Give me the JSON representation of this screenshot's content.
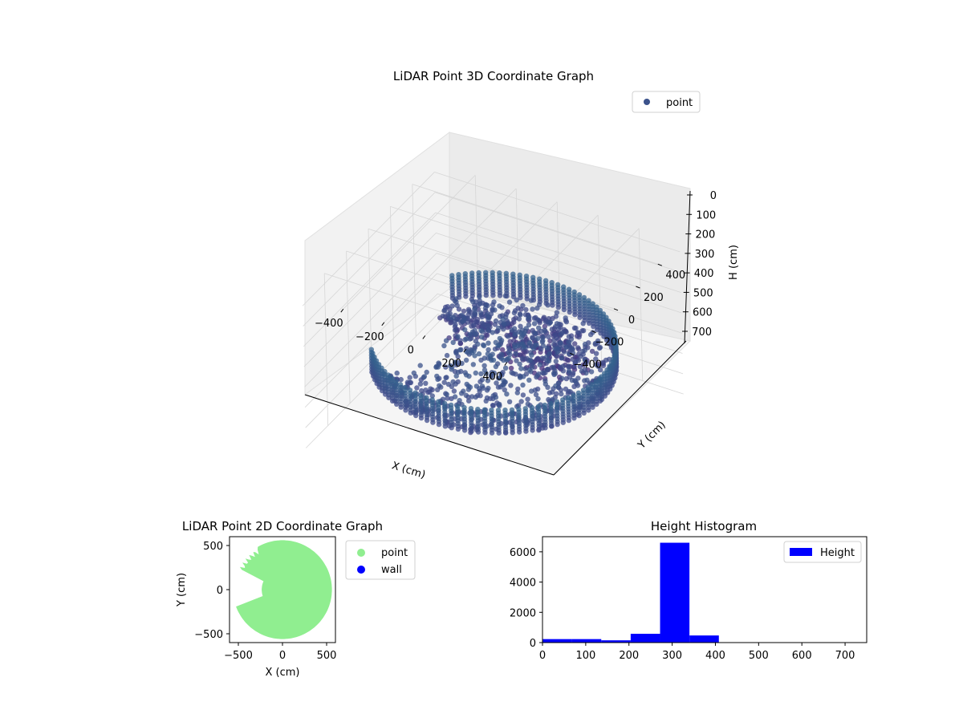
{
  "chart_data": [
    {
      "type": "scatter3d",
      "title": "LiDAR Point 3D Coordinate Graph",
      "xlabel": "X (cm)",
      "ylabel": "Y (cm)",
      "zlabel": "H (cm)",
      "xticks": [
        -400,
        -200,
        0,
        200,
        400
      ],
      "yticks": [
        -400,
        -200,
        0,
        200,
        400
      ],
      "zticks": [
        0,
        100,
        200,
        300,
        400,
        500,
        600,
        700
      ],
      "xlim": [
        -600,
        600
      ],
      "ylim": [
        -600,
        600
      ],
      "zlim": [
        0,
        750
      ],
      "z_axis_inverted": true,
      "colormap": "viridis",
      "legend": {
        "placement": "top-right",
        "entries": [
          {
            "name": "point",
            "color": "#3b528b"
          }
        ]
      },
      "description_of_data": {
        "ring_radius": 530,
        "ring_height_range": [
          280,
          400
        ],
        "missing_arc_deg": [
          140,
          215
        ],
        "spike_height_range": [
          100,
          180
        ]
      }
    },
    {
      "type": "scatter",
      "title": "LiDAR Point 2D Coordinate Graph",
      "xlabel": "X (cm)",
      "ylabel": "Y (cm)",
      "xticks": [
        -500,
        0,
        500
      ],
      "yticks": [
        -500,
        0,
        500
      ],
      "xlim": [
        -600,
        600
      ],
      "ylim": [
        -600,
        600
      ],
      "legend": {
        "placement": "right-outside",
        "entries": [
          {
            "name": "point",
            "color": "#90ee90"
          },
          {
            "name": "wall",
            "color": "#0000ff"
          }
        ]
      },
      "disk_radius": 560,
      "notch_deg": [
        155,
        200
      ]
    },
    {
      "type": "bar",
      "title": "Height Histogram",
      "xlabel": "",
      "ylabel": "",
      "xticks": [
        0,
        100,
        200,
        300,
        400,
        500,
        600,
        700
      ],
      "yticks": [
        0,
        2000,
        4000,
        6000
      ],
      "xlim": [
        0,
        750
      ],
      "ylim": [
        0,
        7000
      ],
      "bar_color": "#0000ff",
      "legend": {
        "placement": "top-right",
        "entries": [
          {
            "name": "Height",
            "color": "#0000ff"
          }
        ]
      },
      "bins": [
        {
          "x0": 0,
          "x1": 68,
          "count": 230
        },
        {
          "x0": 68,
          "x1": 136,
          "count": 230
        },
        {
          "x0": 136,
          "x1": 204,
          "count": 150
        },
        {
          "x0": 204,
          "x1": 272,
          "count": 580
        },
        {
          "x0": 272,
          "x1": 340,
          "count": 6600
        },
        {
          "x0": 340,
          "x1": 408,
          "count": 470
        }
      ]
    }
  ]
}
